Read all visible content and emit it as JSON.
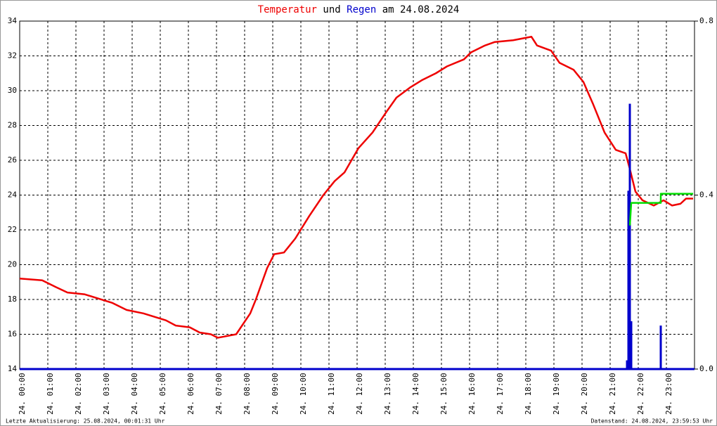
{
  "chart_data": {
    "type": "line",
    "title_words": [
      "und",
      "am 24.08.2024"
    ],
    "footer_left": "Letzte Aktualisierung: 25.08.2024, 00:01:31 Uhr",
    "footer_right": "Datenstand: 24.08.2024, 23:59:53 Uhr",
    "xlim": [
      0,
      24
    ],
    "xticks": [
      {
        "value": 0,
        "label": "24. 00:00"
      },
      {
        "value": 1,
        "label": "24. 01:00"
      },
      {
        "value": 2,
        "label": "24. 02:00"
      },
      {
        "value": 3,
        "label": "24. 03:00"
      },
      {
        "value": 4,
        "label": "24. 04:00"
      },
      {
        "value": 5,
        "label": "24. 05:00"
      },
      {
        "value": 6,
        "label": "24. 06:00"
      },
      {
        "value": 7,
        "label": "24. 07:00"
      },
      {
        "value": 8,
        "label": "24. 08:00"
      },
      {
        "value": 9,
        "label": "24. 09:00"
      },
      {
        "value": 10,
        "label": "24. 10:00"
      },
      {
        "value": 11,
        "label": "24. 11:00"
      },
      {
        "value": 12,
        "label": "24. 12:00"
      },
      {
        "value": 13,
        "label": "24. 13:00"
      },
      {
        "value": 14,
        "label": "24. 14:00"
      },
      {
        "value": 15,
        "label": "24. 15:00"
      },
      {
        "value": 16,
        "label": "24. 16:00"
      },
      {
        "value": 17,
        "label": "24. 17:00"
      },
      {
        "value": 18,
        "label": "24. 18:00"
      },
      {
        "value": 19,
        "label": "24. 19:00"
      },
      {
        "value": 20,
        "label": "24. 20:00"
      },
      {
        "value": 21,
        "label": "24. 21:00"
      },
      {
        "value": 22,
        "label": "24. 22:00"
      },
      {
        "value": 23,
        "label": "24. 23:00"
      }
    ],
    "ylim": [
      14,
      34
    ],
    "yticks": [
      14,
      16,
      18,
      20,
      22,
      24,
      26,
      28,
      30,
      32,
      34
    ],
    "y2lim": [
      0,
      0.8
    ],
    "y2ticks": [
      {
        "value": 0,
        "label": "0.0"
      },
      0.4,
      0.8
    ],
    "grid": true,
    "series": [
      {
        "name": "Temperatur",
        "color": "#ee0000",
        "x": [
          0,
          0.8,
          1.3,
          1.7,
          2.3,
          3.3,
          3.8,
          4.4,
          5.2,
          5.55,
          6.05,
          6.4,
          6.8,
          7.05,
          7.7,
          8.2,
          8.4,
          8.8,
          9.05,
          9.4,
          9.8,
          10.3,
          10.8,
          11.2,
          11.55,
          12.05,
          12.55,
          13.05,
          13.4,
          13.9,
          14.3,
          14.8,
          15.2,
          15.8,
          16.05,
          16.55,
          16.9,
          17.55,
          18.2,
          18.4,
          18.9,
          19.2,
          19.7,
          20.05,
          20.4,
          20.8,
          21.2,
          21.55,
          21.7,
          21.9,
          22.15,
          22.55,
          22.9,
          23.2,
          23.5,
          23.7,
          23.95
        ],
        "values": [
          19.2,
          19.1,
          18.7,
          18.4,
          18.3,
          17.8,
          17.4,
          17.2,
          16.8,
          16.5,
          16.4,
          16.1,
          16.0,
          15.8,
          16.0,
          17.2,
          18.0,
          19.8,
          20.6,
          20.7,
          21.5,
          22.8,
          24.0,
          24.8,
          25.3,
          26.7,
          27.6,
          28.8,
          29.6,
          30.2,
          30.6,
          31.0,
          31.4,
          31.8,
          32.2,
          32.6,
          32.8,
          32.9,
          33.1,
          32.6,
          32.3,
          31.6,
          31.2,
          30.5,
          29.2,
          27.6,
          26.6,
          26.4,
          25.5,
          24.2,
          23.7,
          23.4,
          23.7,
          23.4,
          23.5,
          23.8,
          23.8
        ]
      },
      {
        "name": "Regen",
        "color": "#0000cc",
        "axis": "y2",
        "x": [
          21.6,
          21.65,
          21.7,
          21.75,
          22.8
        ],
        "values": [
          0.02,
          0.41,
          0.61,
          0.11,
          0.1
        ]
      },
      {
        "color": "#00dd00",
        "axis": "y2",
        "x": [
          21.7,
          21.75,
          22.8,
          22.8,
          23.95
        ],
        "values": [
          0.33,
          0.382,
          0.382,
          0.403,
          0.403
        ]
      }
    ]
  }
}
